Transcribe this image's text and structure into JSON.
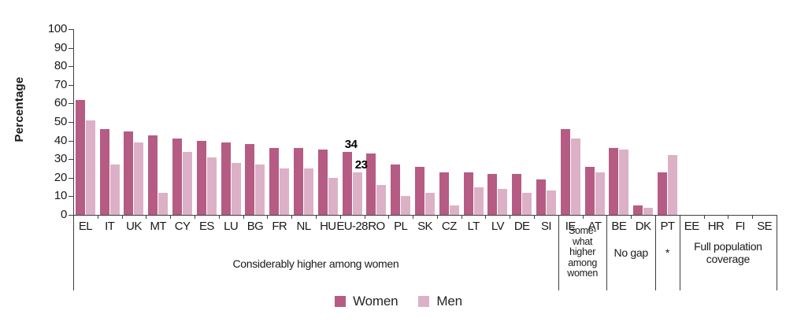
{
  "chart_data": {
    "type": "bar",
    "title": "",
    "ylabel": "Percentage",
    "xlabel": "",
    "ylim": [
      0,
      100
    ],
    "y_ticks": [
      100,
      90,
      80,
      70,
      60,
      50,
      40,
      30,
      20,
      10,
      0
    ],
    "grid": false,
    "legend_position": "bottom-center",
    "categories": [
      "EL",
      "IT",
      "UK",
      "MT",
      "CY",
      "ES",
      "LU",
      "BG",
      "FR",
      "NL",
      "HU",
      "EU-28",
      "RO",
      "PL",
      "SK",
      "CZ",
      "LT",
      "LV",
      "DE",
      "SI",
      "IE",
      "AT",
      "BE",
      "DK",
      "PT",
      "EE",
      "HR",
      "FI",
      "SE"
    ],
    "series": [
      {
        "name": "Women",
        "values": [
          62,
          46,
          45,
          43,
          41,
          40,
          39,
          38,
          36,
          36,
          35,
          34,
          33,
          27,
          26,
          23,
          23,
          22,
          22,
          19,
          46,
          26,
          36,
          5,
          23,
          null,
          null,
          null,
          null
        ]
      },
      {
        "name": "Men",
        "values": [
          51,
          27,
          39,
          12,
          34,
          31,
          28,
          27,
          25,
          25,
          20,
          23,
          16,
          10,
          12,
          5,
          15,
          14,
          12,
          13,
          41,
          23,
          35,
          4,
          32,
          null,
          null,
          null,
          null
        ]
      }
    ],
    "annotations": [
      {
        "category": "EU-28",
        "series": "Women",
        "text": "34"
      },
      {
        "category": "EU-28",
        "series": "Men",
        "text": "23"
      }
    ],
    "groups": [
      {
        "from": 0,
        "to": 19,
        "label_lines": [
          "Considerably higher among women"
        ],
        "style": "lowered"
      },
      {
        "from": 20,
        "to": 21,
        "label_lines": [
          "Some-",
          "what",
          "higher",
          "among",
          "women"
        ],
        "style": "tight"
      },
      {
        "from": 22,
        "to": 23,
        "label_lines": [
          "No gap"
        ],
        "style": ""
      },
      {
        "from": 24,
        "to": 24,
        "label_lines": [
          "*"
        ],
        "style": ""
      },
      {
        "from": 25,
        "to": 28,
        "label_lines": [
          "Full population",
          "coverage"
        ],
        "style": ""
      }
    ],
    "colors": {
      "women": "#b65c84",
      "men": "#dcb1c7",
      "axis": "#3f3f3f",
      "text": "#1a1a1a"
    }
  }
}
